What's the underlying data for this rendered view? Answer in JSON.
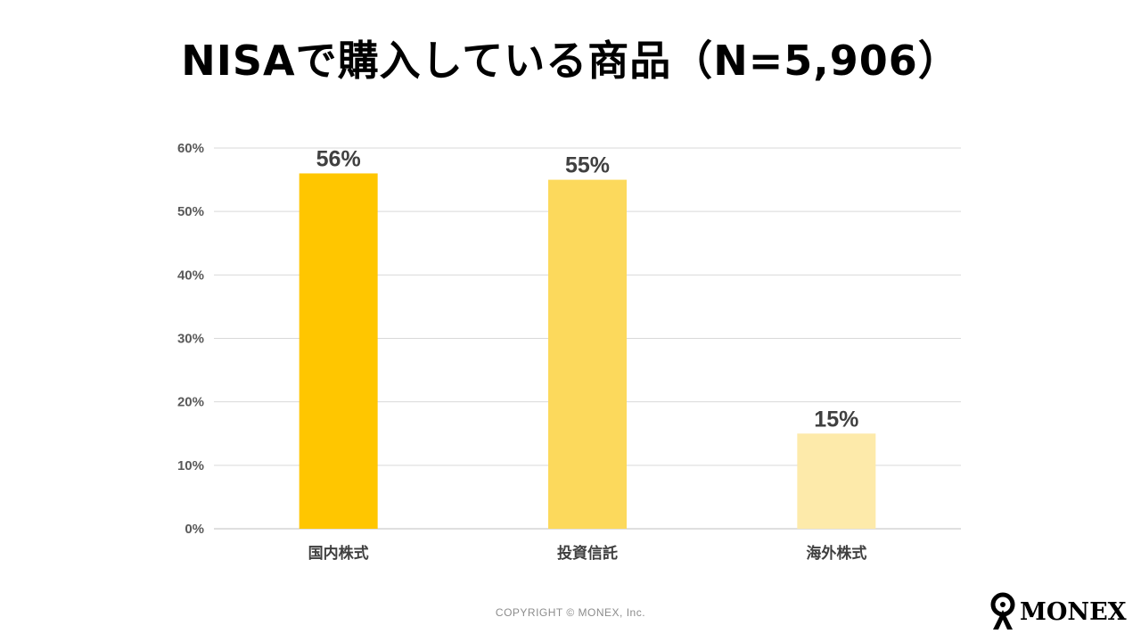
{
  "page": {
    "footer": "COPYRIGHT © MONEX, Inc.",
    "logo_text": "MONEX"
  },
  "chart_data": {
    "type": "bar",
    "title": "NISAで購入している商品（N=5,906）",
    "categories": [
      "国内株式",
      "投資信託",
      "海外株式"
    ],
    "values": [
      56,
      55,
      15
    ],
    "data_labels": [
      "56%",
      "55%",
      "15%"
    ],
    "colors": [
      "#FFC600",
      "#FCD95C",
      "#FDEAAA"
    ],
    "ylim": [
      0,
      60
    ],
    "yticks": [
      0,
      10,
      20,
      30,
      40,
      50,
      60
    ],
    "ytick_labels": [
      "0%",
      "10%",
      "20%",
      "30%",
      "40%",
      "50%",
      "60%"
    ],
    "xlabel": "",
    "ylabel": "",
    "grid": true,
    "legend": "none"
  }
}
